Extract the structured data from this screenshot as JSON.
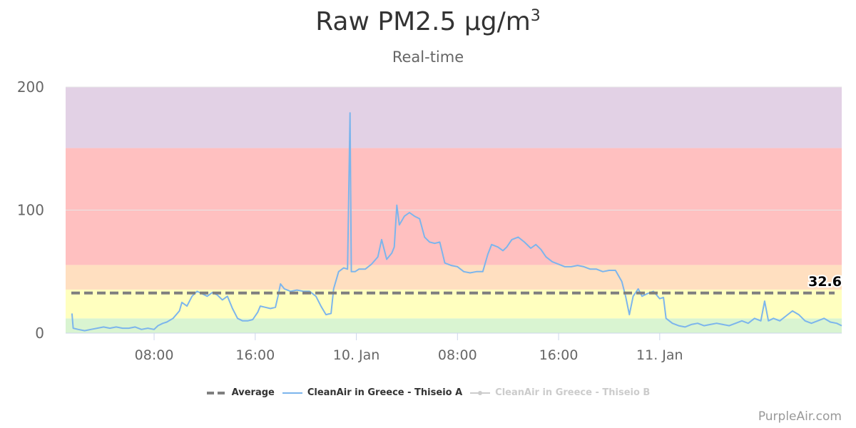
{
  "header": {
    "title_main": "Raw PM2.5 μg/m",
    "title_sup": "3",
    "subtitle": "Real-time"
  },
  "credit": "PurpleAir.com",
  "colors": {
    "good": "#d9f4d1",
    "moderate": "#ffffbf",
    "sensitive": "#ffdfc0",
    "unhealthy": "#ffc0c0",
    "very_unhealthy": "#e2d1e5",
    "series_a": "#7cb5ec",
    "average": "#7f7f7f",
    "series_b": "#cccccc"
  },
  "chart_data": {
    "type": "line",
    "title": "Raw PM2.5 μg/m³",
    "subtitle": "Real-time",
    "ylim": [
      0,
      200
    ],
    "y_ticks": [
      0,
      100,
      200
    ],
    "x_range": [
      1.0,
      62.4
    ],
    "x_ticks": [
      {
        "x": 8,
        "label": "08:00"
      },
      {
        "x": 16,
        "label": "16:00"
      },
      {
        "x": 24,
        "label": "10. Jan"
      },
      {
        "x": 32,
        "label": "08:00"
      },
      {
        "x": 40,
        "label": "16:00"
      },
      {
        "x": 48,
        "label": "11. Jan"
      }
    ],
    "aqi_bands": [
      {
        "from": 0,
        "to": 12,
        "color": "#d9f4d1"
      },
      {
        "from": 12,
        "to": 35.4,
        "color": "#ffffbf"
      },
      {
        "from": 35.4,
        "to": 55.4,
        "color": "#ffdfc0"
      },
      {
        "from": 55.4,
        "to": 150.4,
        "color": "#ffc0c0"
      },
      {
        "from": 150.4,
        "to": 200,
        "color": "#e2d1e5"
      }
    ],
    "average": 32.6,
    "average_label": "32.6",
    "grid": true,
    "legend": "bottom",
    "series": [
      {
        "name": "Average",
        "style": "dashed",
        "color": "#7f7f7f"
      },
      {
        "name": "CleanAir in Greece - Thiseio A",
        "color": "#7cb5ec",
        "points": [
          [
            1.5,
            16
          ],
          [
            1.6,
            4
          ],
          [
            2.0,
            3
          ],
          [
            2.5,
            2
          ],
          [
            3.0,
            3
          ],
          [
            3.5,
            4
          ],
          [
            4.0,
            5
          ],
          [
            4.5,
            4
          ],
          [
            5.0,
            5
          ],
          [
            5.5,
            4
          ],
          [
            6.0,
            4
          ],
          [
            6.5,
            5
          ],
          [
            7.0,
            3
          ],
          [
            7.5,
            4
          ],
          [
            8.0,
            3
          ],
          [
            8.3,
            6
          ],
          [
            8.7,
            8
          ],
          [
            9.0,
            9
          ],
          [
            9.5,
            12
          ],
          [
            10.0,
            18
          ],
          [
            10.2,
            25
          ],
          [
            10.6,
            22
          ],
          [
            11.0,
            30
          ],
          [
            11.4,
            34
          ],
          [
            11.8,
            32
          ],
          [
            12.2,
            30
          ],
          [
            12.6,
            33
          ],
          [
            13.0,
            31
          ],
          [
            13.4,
            27
          ],
          [
            13.8,
            30
          ],
          [
            14.2,
            20
          ],
          [
            14.6,
            12
          ],
          [
            15.0,
            10
          ],
          [
            15.4,
            10
          ],
          [
            15.8,
            11
          ],
          [
            16.2,
            17
          ],
          [
            16.4,
            22
          ],
          [
            16.8,
            21
          ],
          [
            17.2,
            20
          ],
          [
            17.6,
            21
          ],
          [
            17.8,
            30
          ],
          [
            18.0,
            40
          ],
          [
            18.3,
            36
          ],
          [
            18.8,
            34
          ],
          [
            19.3,
            35
          ],
          [
            19.8,
            34
          ],
          [
            20.3,
            34
          ],
          [
            20.8,
            30
          ],
          [
            21.2,
            22
          ],
          [
            21.6,
            15
          ],
          [
            22.0,
            16
          ],
          [
            22.2,
            36
          ],
          [
            22.6,
            50
          ],
          [
            23.0,
            53
          ],
          [
            23.3,
            52
          ],
          [
            23.5,
            179
          ],
          [
            23.6,
            50
          ],
          [
            23.9,
            50
          ],
          [
            24.2,
            52
          ],
          [
            24.7,
            52
          ],
          [
            25.2,
            56
          ],
          [
            25.7,
            62
          ],
          [
            26.0,
            76
          ],
          [
            26.4,
            60
          ],
          [
            26.8,
            65
          ],
          [
            27.0,
            70
          ],
          [
            27.2,
            104
          ],
          [
            27.4,
            88
          ],
          [
            27.8,
            95
          ],
          [
            28.2,
            98
          ],
          [
            28.6,
            95
          ],
          [
            29.0,
            93
          ],
          [
            29.4,
            78
          ],
          [
            29.8,
            74
          ],
          [
            30.2,
            73
          ],
          [
            30.6,
            74
          ],
          [
            31.0,
            57
          ],
          [
            31.5,
            55
          ],
          [
            32.0,
            54
          ],
          [
            32.5,
            50
          ],
          [
            33.0,
            49
          ],
          [
            33.5,
            50
          ],
          [
            34.0,
            50
          ],
          [
            34.4,
            64
          ],
          [
            34.7,
            72
          ],
          [
            35.2,
            70
          ],
          [
            35.6,
            67
          ],
          [
            35.9,
            70
          ],
          [
            36.3,
            76
          ],
          [
            36.8,
            78
          ],
          [
            37.3,
            74
          ],
          [
            37.8,
            69
          ],
          [
            38.2,
            72
          ],
          [
            38.6,
            68
          ],
          [
            39.0,
            62
          ],
          [
            39.5,
            58
          ],
          [
            40.0,
            56
          ],
          [
            40.5,
            54
          ],
          [
            41.0,
            54
          ],
          [
            41.5,
            55
          ],
          [
            42.0,
            54
          ],
          [
            42.5,
            52
          ],
          [
            43.0,
            52
          ],
          [
            43.5,
            50
          ],
          [
            44.0,
            51
          ],
          [
            44.5,
            51
          ],
          [
            45.0,
            42
          ],
          [
            45.3,
            30
          ],
          [
            45.6,
            15
          ],
          [
            45.9,
            30
          ],
          [
            46.3,
            36
          ],
          [
            46.6,
            30
          ],
          [
            47.0,
            32
          ],
          [
            47.5,
            34
          ],
          [
            48.0,
            28
          ],
          [
            48.3,
            29
          ],
          [
            48.5,
            12
          ],
          [
            49.0,
            8
          ],
          [
            49.5,
            6
          ],
          [
            50.0,
            5
          ],
          [
            50.5,
            7
          ],
          [
            51.0,
            8
          ],
          [
            51.5,
            6
          ],
          [
            52.0,
            7
          ],
          [
            52.5,
            8
          ],
          [
            53.0,
            7
          ],
          [
            53.5,
            6
          ],
          [
            54.0,
            8
          ],
          [
            54.5,
            10
          ],
          [
            55.0,
            8
          ],
          [
            55.5,
            12
          ],
          [
            56.0,
            10
          ],
          [
            56.3,
            26
          ],
          [
            56.6,
            10
          ],
          [
            57.0,
            12
          ],
          [
            57.5,
            10
          ],
          [
            58.0,
            14
          ],
          [
            58.5,
            18
          ],
          [
            59.0,
            15
          ],
          [
            59.5,
            10
          ],
          [
            60.0,
            8
          ],
          [
            60.5,
            10
          ],
          [
            61.0,
            12
          ],
          [
            61.5,
            9
          ],
          [
            62.0,
            8
          ],
          [
            62.4,
            6
          ]
        ]
      },
      {
        "name": "CleanAir in Greece - Thiseio B",
        "color": "#cccccc",
        "visible": false
      }
    ]
  },
  "legend": {
    "items": [
      {
        "label": "Average"
      },
      {
        "label": "CleanAir in Greece - Thiseio A"
      },
      {
        "label": "CleanAir in Greece - Thiseio B"
      }
    ]
  }
}
